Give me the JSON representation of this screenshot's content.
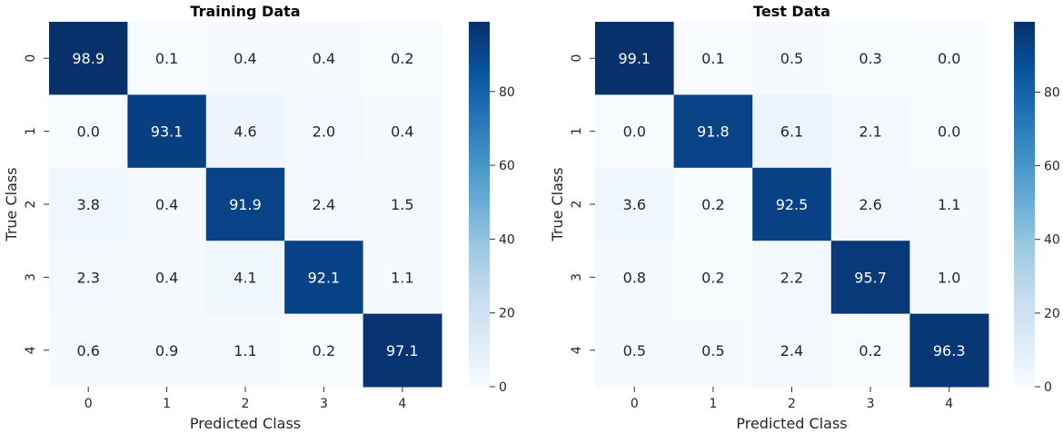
{
  "colormap": [
    "#f7fbff",
    "#deebf7",
    "#c6dbef",
    "#9ecae1",
    "#6baed6",
    "#4292c6",
    "#2171b5",
    "#08519c",
    "#08306b"
  ],
  "chart_data": [
    {
      "type": "heatmap",
      "title": "Training Data",
      "xlabel": "Predicted Class",
      "ylabel": "True Class",
      "x_categories": [
        "0",
        "1",
        "2",
        "3",
        "4"
      ],
      "y_categories": [
        "0",
        "1",
        "2",
        "3",
        "4"
      ],
      "values": [
        [
          98.9,
          0.1,
          0.4,
          0.4,
          0.2
        ],
        [
          0.0,
          93.1,
          4.6,
          2.0,
          0.4
        ],
        [
          3.8,
          0.4,
          91.9,
          2.4,
          1.5
        ],
        [
          2.3,
          0.4,
          4.1,
          92.1,
          1.1
        ],
        [
          0.6,
          0.9,
          1.1,
          0.2,
          97.1
        ]
      ],
      "value_format": "0.0",
      "color_range": [
        0,
        98.9
      ],
      "colorbar_ticks": [
        "0",
        "20",
        "40",
        "60",
        "80"
      ]
    },
    {
      "type": "heatmap",
      "title": "Test Data",
      "xlabel": "Predicted Class",
      "ylabel": "True Class",
      "x_categories": [
        "0",
        "1",
        "2",
        "3",
        "4"
      ],
      "y_categories": [
        "0",
        "1",
        "2",
        "3",
        "4"
      ],
      "values": [
        [
          99.1,
          0.1,
          0.5,
          0.3,
          0.0
        ],
        [
          0.0,
          91.8,
          6.1,
          2.1,
          0.0
        ],
        [
          3.6,
          0.2,
          92.5,
          2.6,
          1.1
        ],
        [
          0.8,
          0.2,
          2.2,
          95.7,
          1.0
        ],
        [
          0.5,
          0.5,
          2.4,
          0.2,
          96.3
        ]
      ],
      "value_format": "0.0",
      "color_range": [
        0,
        99.1
      ],
      "colorbar_ticks": [
        "0",
        "20",
        "40",
        "60",
        "80"
      ]
    }
  ]
}
